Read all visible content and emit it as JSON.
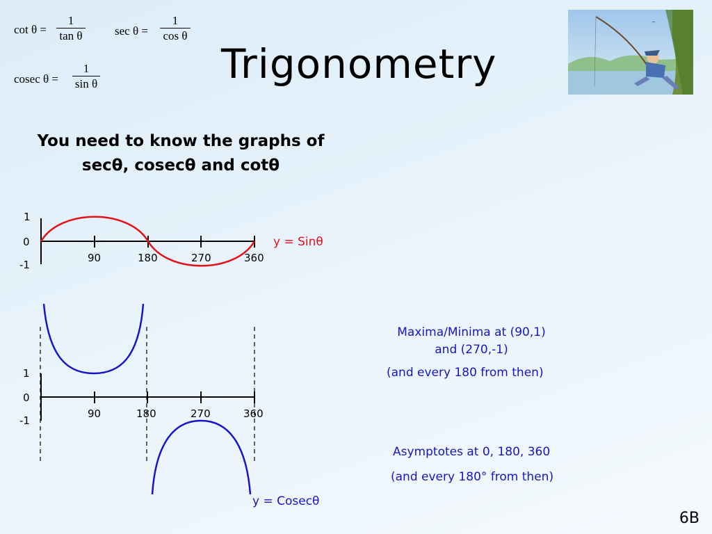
{
  "slide": {
    "title": "Trigonometry",
    "intro_line1": "You need to know the graphs of",
    "intro_line2": "secθ, cosecθ and cotθ",
    "slide_number": "6B"
  },
  "formulas": {
    "cot": {
      "lhs": "cot θ =",
      "num": "1",
      "den": "tan θ"
    },
    "sec": {
      "lhs": "sec θ =",
      "num": "1",
      "den": "cos θ"
    },
    "cosec": {
      "lhs": "cosec θ =",
      "num": "1",
      "den": "sin θ"
    }
  },
  "sin_graph": {
    "label": "y = Sinθ",
    "y_ticks": [
      "1",
      "0",
      "-1"
    ],
    "x_ticks": [
      "90",
      "180",
      "270",
      "360"
    ],
    "color": "#e0131a"
  },
  "cosec_graph": {
    "label": "y = Cosecθ",
    "y_ticks": [
      "1",
      "0",
      "-1"
    ],
    "x_ticks": [
      "90",
      "180",
      "270",
      "360"
    ],
    "color": "#1616c8"
  },
  "notes": {
    "maxima_line1": "Maxima/Minima at (90,1)",
    "maxima_line2": "and (270,-1)",
    "every180": "(and every 180 from then)",
    "asymptotes": "Asymptotes at 0, 180, 360",
    "every180deg": "(and every 180° from then)"
  },
  "chart_data": [
    {
      "type": "line",
      "series": [
        {
          "name": "y = Sinθ",
          "x": [
            0,
            90,
            180,
            270,
            360
          ],
          "y": [
            0,
            1,
            0,
            -1,
            0
          ]
        }
      ],
      "x_ticks": [
        90,
        180,
        270,
        360
      ],
      "y_ticks": [
        1,
        0,
        -1
      ],
      "ylim": [
        -1,
        1
      ]
    },
    {
      "type": "line",
      "series": [
        {
          "name": "y = Cosecθ",
          "x": [
            0,
            90,
            180,
            270,
            360
          ],
          "y": [
            null,
            1,
            null,
            -1,
            null
          ]
        }
      ],
      "asymptotes_x": [
        0,
        180,
        360
      ],
      "x_ticks": [
        90,
        180,
        270,
        360
      ],
      "y_ticks": [
        1,
        0,
        -1
      ]
    }
  ]
}
